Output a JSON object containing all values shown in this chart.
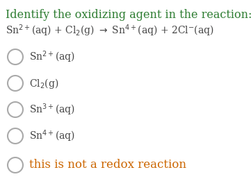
{
  "title": "Identify the oxidizing agent in the reaction:",
  "title_color": "#2e7d32",
  "title_fontsize": 11.5,
  "reaction_color": "#444444",
  "reaction_fontsize": 10,
  "background_color": "#ffffff",
  "circle_color": "#aaaaaa",
  "circle_linewidth": 1.5,
  "options": [
    "Sn$^{2+}$(aq)",
    "Cl$_{2}$(g)",
    "Sn$^{3+}$(aq)",
    "Sn$^{4+}$(aq)",
    "this is not a redox reaction"
  ],
  "option_colors": [
    "#444444",
    "#444444",
    "#444444",
    "#444444",
    "#cc6600"
  ],
  "option_fontsize": 10,
  "last_option_fontsize": 12
}
